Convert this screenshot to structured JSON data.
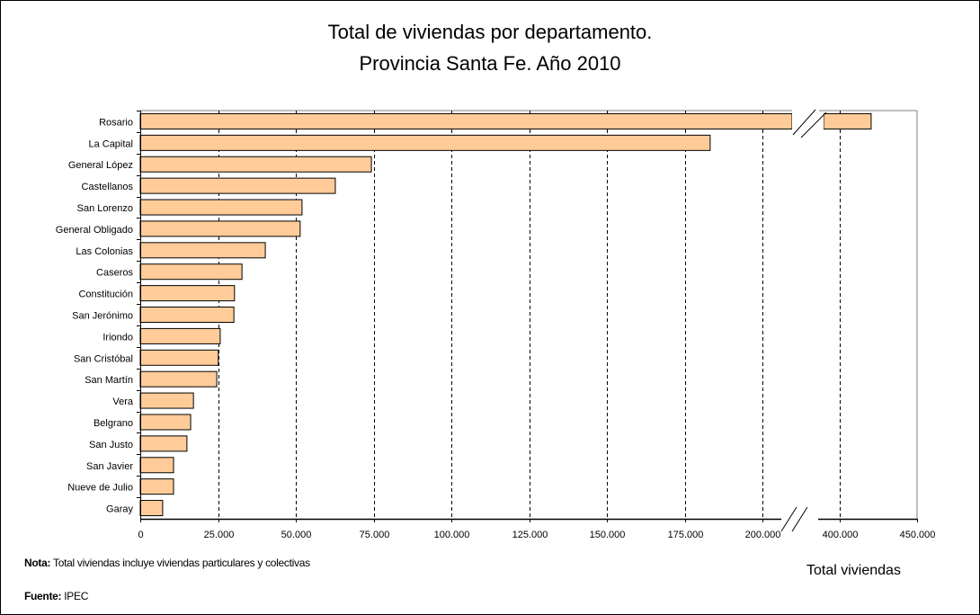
{
  "chart_data": {
    "type": "bar",
    "orientation": "horizontal",
    "title": "Total de viviendas por departamento.",
    "subtitle": "Provincia Santa Fe. Año 2010",
    "xlabel": "Total viviendas",
    "ylabel": "",
    "axis_break": [
      210000,
      385000
    ],
    "xlim": [
      0,
      450000
    ],
    "xticks": [
      0,
      25000,
      50000,
      75000,
      100000,
      125000,
      150000,
      175000,
      200000,
      400000,
      450000
    ],
    "xtick_labels": [
      "0",
      "25.000",
      "50.000",
      "75.000",
      "100.000",
      "125.000",
      "150.000",
      "175.000",
      "200.000",
      "400.000",
      "450.000"
    ],
    "grid": "vertical dashed",
    "bar_color": "#FFCC99",
    "categories": [
      "Rosario",
      "La Capital",
      "General López",
      "Castellanos",
      "San Lorenzo",
      "General Obligado",
      "Las Colonias",
      "Caseros",
      "Constitución",
      "San Jerónimo",
      "Iriondo",
      "San Cristóbal",
      "San Martín",
      "Vera",
      "Belgrano",
      "San Justo",
      "San Javier",
      "Nueve de Julio",
      "Garay"
    ],
    "values": [
      420300,
      183200,
      74300,
      62700,
      52000,
      51400,
      40200,
      32700,
      30300,
      30100,
      25700,
      25100,
      24600,
      17100,
      16200,
      15000,
      10700,
      10700,
      7200
    ]
  },
  "notes": {
    "nota_label": "Nota:",
    "nota_text": " Total viviendas incluye viviendas particulares y colectivas",
    "fuente_label": "Fuente:",
    "fuente_text": " IPEC"
  }
}
